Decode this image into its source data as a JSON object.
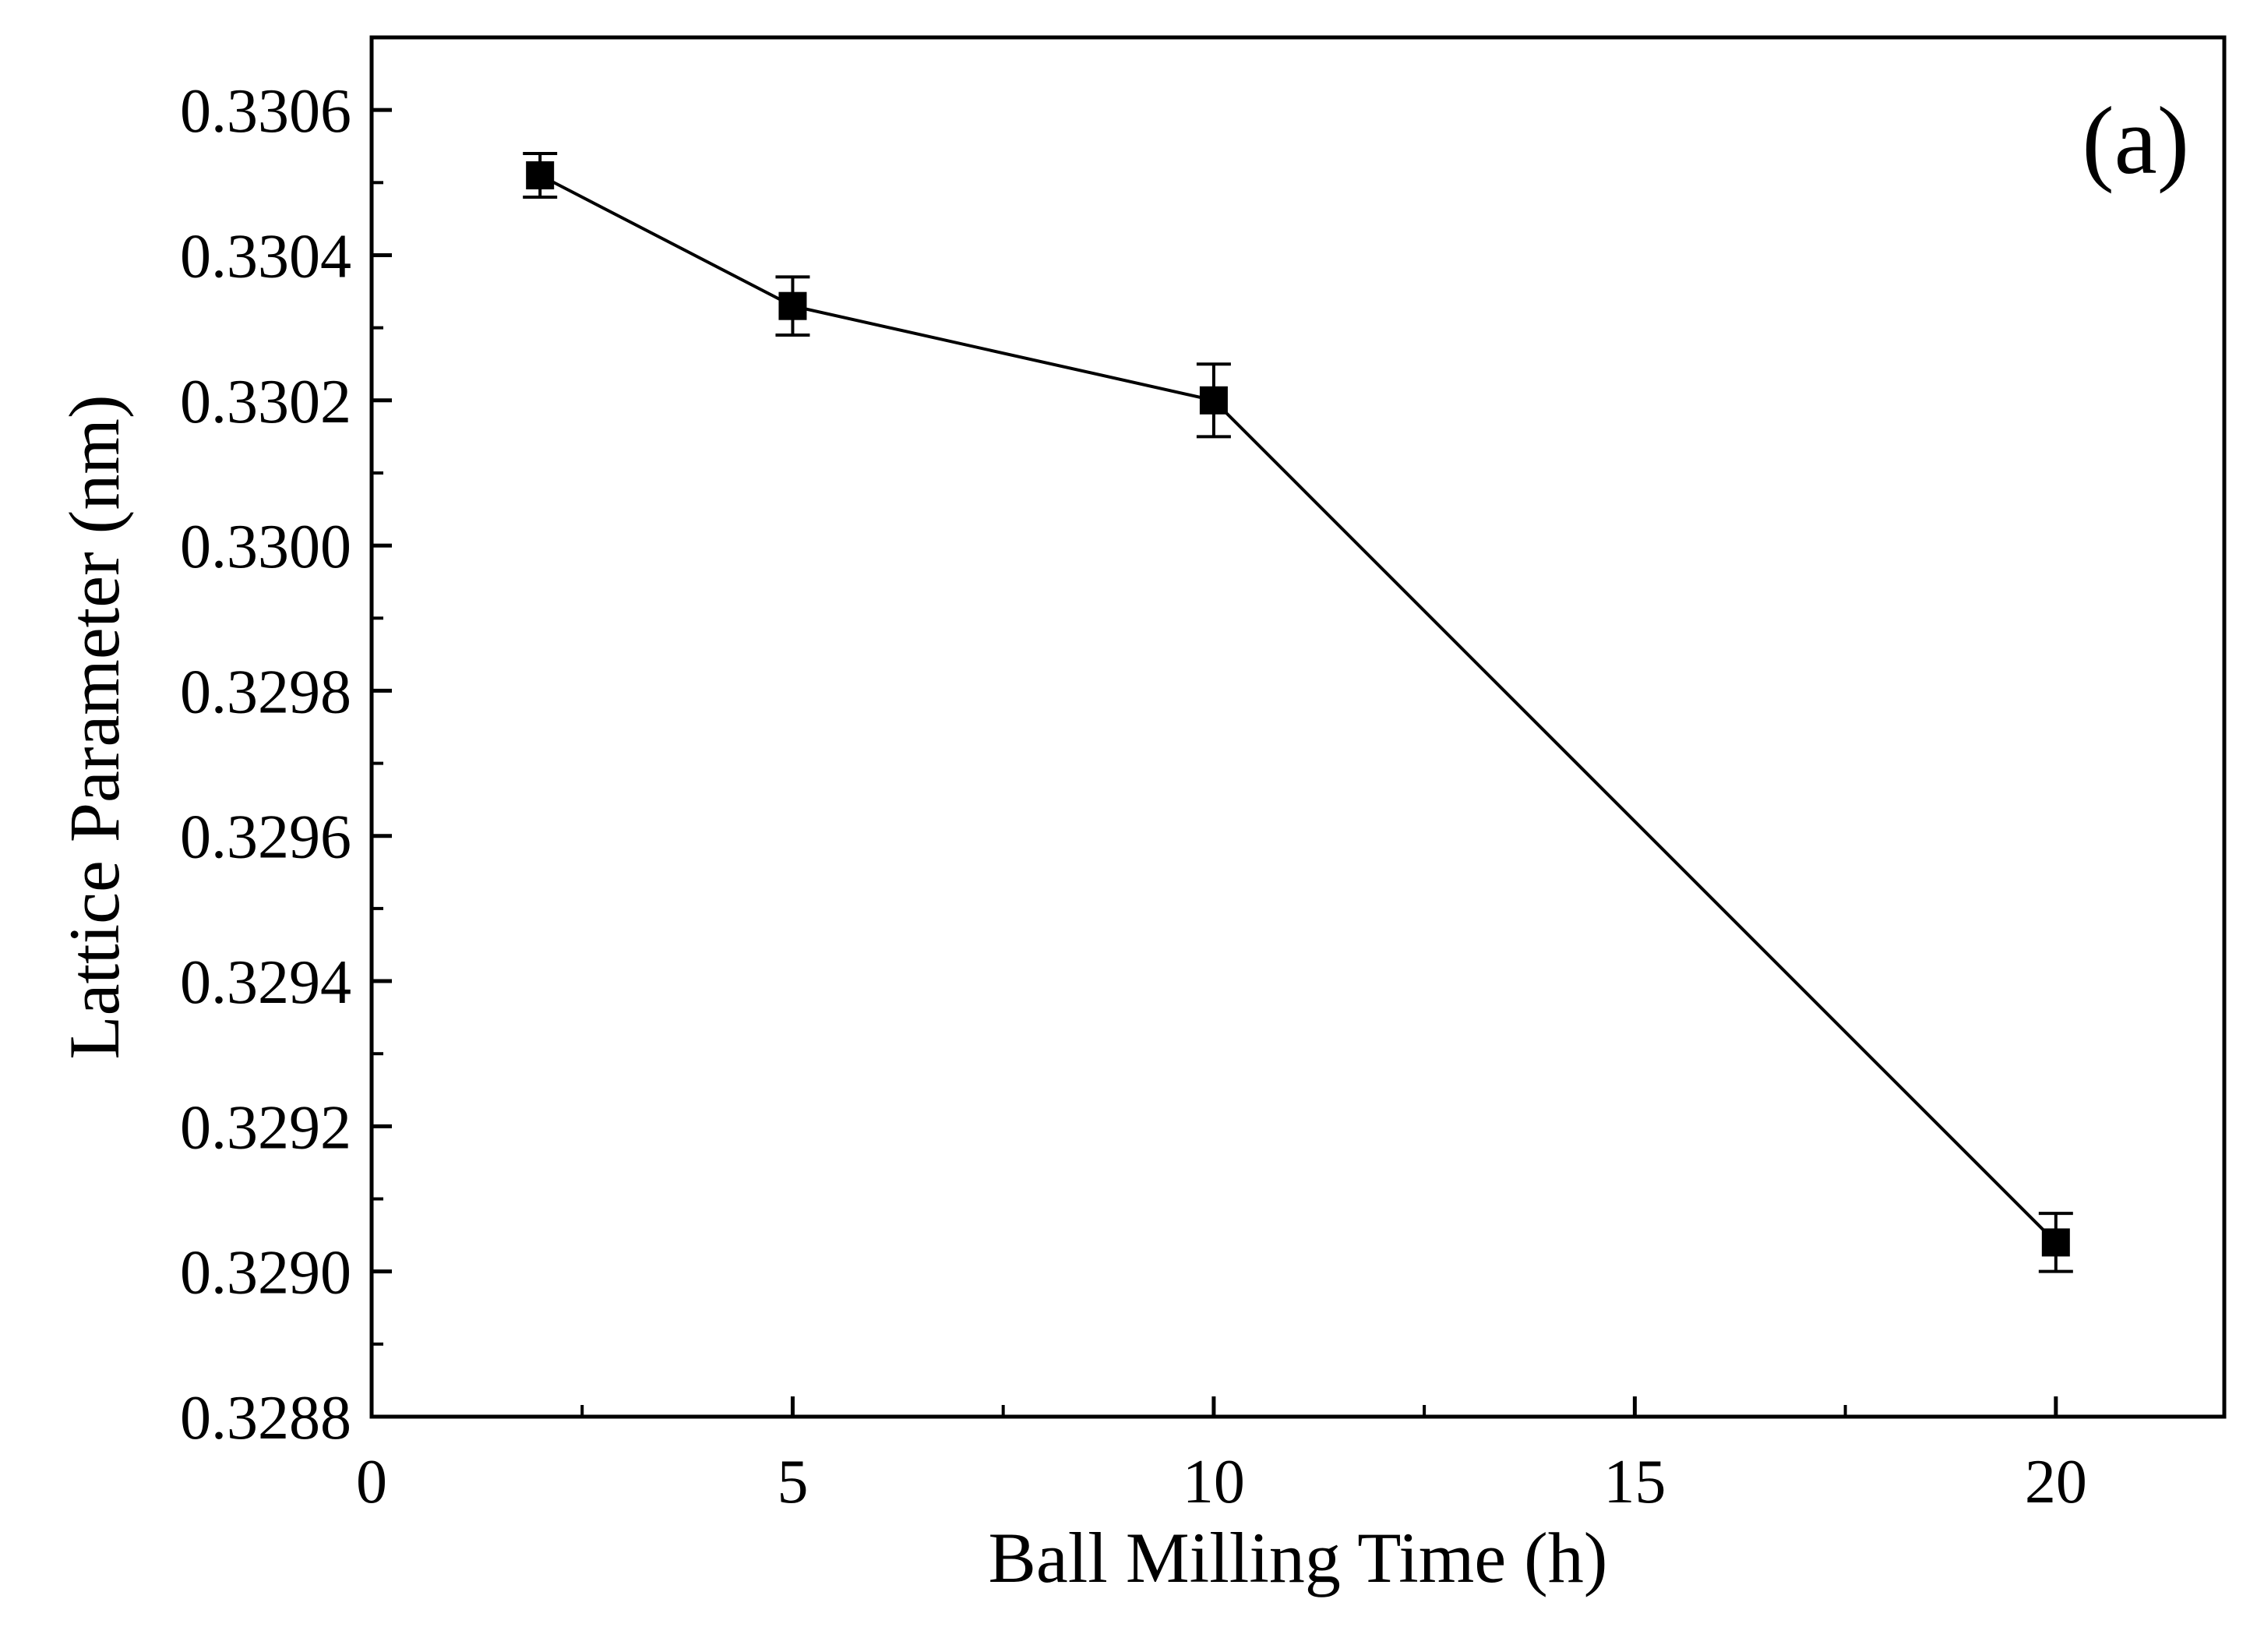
{
  "chart_data": {
    "type": "line",
    "title": "",
    "panel_label": "(a)",
    "xlabel": "Ball Milling Time (h)",
    "ylabel": "Lattice Parameter (nm)",
    "xlim": [
      0,
      22
    ],
    "ylim": [
      0.3288,
      0.3307
    ],
    "xticks": [
      0,
      5,
      10,
      15,
      20
    ],
    "xtick_labels": [
      "0",
      "5",
      "10",
      "15",
      "20"
    ],
    "yticks": [
      0.3288,
      0.329,
      0.3292,
      0.3294,
      0.3296,
      0.3298,
      0.33,
      0.3302,
      0.3304,
      0.3306
    ],
    "ytick_labels": [
      "0.3288",
      "0.3290",
      "0.3292",
      "0.3294",
      "0.3296",
      "0.3298",
      "0.3300",
      "0.3302",
      "0.3304",
      "0.3306"
    ],
    "grid": false,
    "series": [
      {
        "name": "Lattice Parameter",
        "marker": "square",
        "color": "#000000",
        "x": [
          2,
          5,
          10,
          20
        ],
        "y": [
          0.33051,
          0.33033,
          0.3302,
          0.32904
        ],
        "error": [
          3e-05,
          4e-05,
          5e-05,
          4e-05
        ]
      }
    ]
  }
}
